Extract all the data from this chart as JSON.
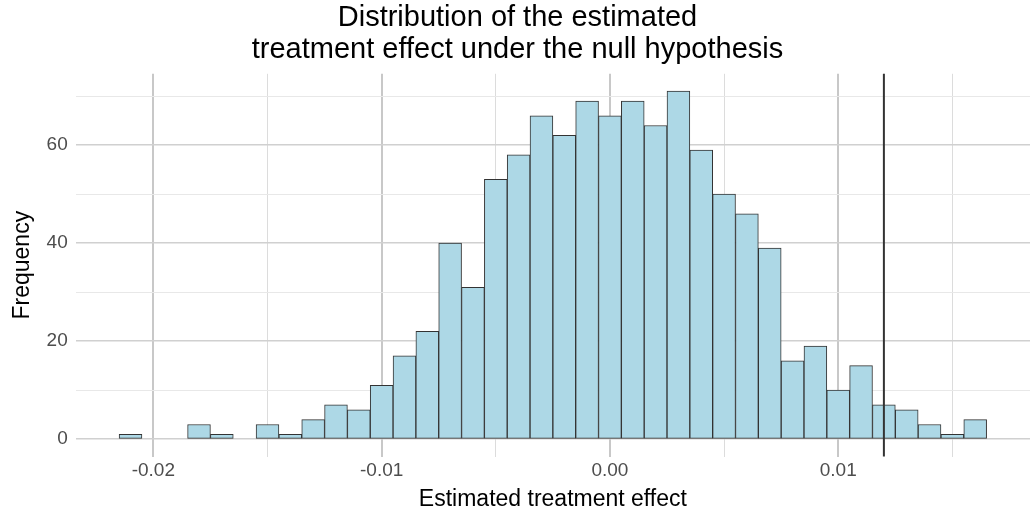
{
  "chart_data": {
    "type": "histogram",
    "title": "Distribution of the estimated\ntreatment effect under the null hypothesis",
    "xlabel": "Estimated treatment effect",
    "ylabel": "Frequency",
    "bins": [
      -0.0215,
      -0.0205,
      -0.0195,
      -0.0185,
      -0.0175,
      -0.0165,
      -0.0155,
      -0.0145,
      -0.0135,
      -0.0125,
      -0.0115,
      -0.0105,
      -0.0095,
      -0.0085,
      -0.0075,
      -0.0065,
      -0.0055,
      -0.0045,
      -0.0035,
      -0.0025,
      -0.0015,
      -0.0005,
      0.0005,
      0.0015,
      0.0025,
      0.0035,
      0.0045,
      0.0055,
      0.0065,
      0.0075,
      0.0085,
      0.0095,
      0.0105,
      0.0115,
      0.0125,
      0.0135,
      0.0145,
      0.0155,
      0.0165
    ],
    "values": [
      1,
      0,
      0,
      3,
      1,
      0,
      3,
      1,
      4,
      7,
      6,
      11,
      17,
      22,
      40,
      31,
      53,
      58,
      66,
      62,
      69,
      66,
      69,
      64,
      71,
      59,
      50,
      46,
      39,
      16,
      19,
      10,
      15,
      7,
      6,
      3,
      1,
      4
    ],
    "color": "#add8e6",
    "xlim": [
      -0.0234,
      0.0184
    ],
    "xticks": [
      {
        "value": -0.02,
        "label": "-0.02"
      },
      {
        "value": -0.015,
        "label": null
      },
      {
        "value": -0.01,
        "label": "-0.01"
      },
      {
        "value": -0.005,
        "label": null
      },
      {
        "value": 0,
        "label": "0.00"
      },
      {
        "value": 0.005,
        "label": null
      },
      {
        "value": 0.01,
        "label": "0.01"
      },
      {
        "value": 0.015,
        "label": null
      }
    ],
    "ylim": [
      -3.55,
      74.55
    ],
    "yticks": [
      0,
      {
        "value": 10,
        "label": null
      },
      20,
      {
        "value": 30,
        "label": null
      },
      40,
      {
        "value": 50,
        "label": null
      },
      60,
      {
        "value": 70,
        "label": null
      }
    ],
    "grid": true,
    "ref_lines": [
      {
        "axis": "x",
        "value": 0.012,
        "color": "#333333"
      }
    ]
  }
}
